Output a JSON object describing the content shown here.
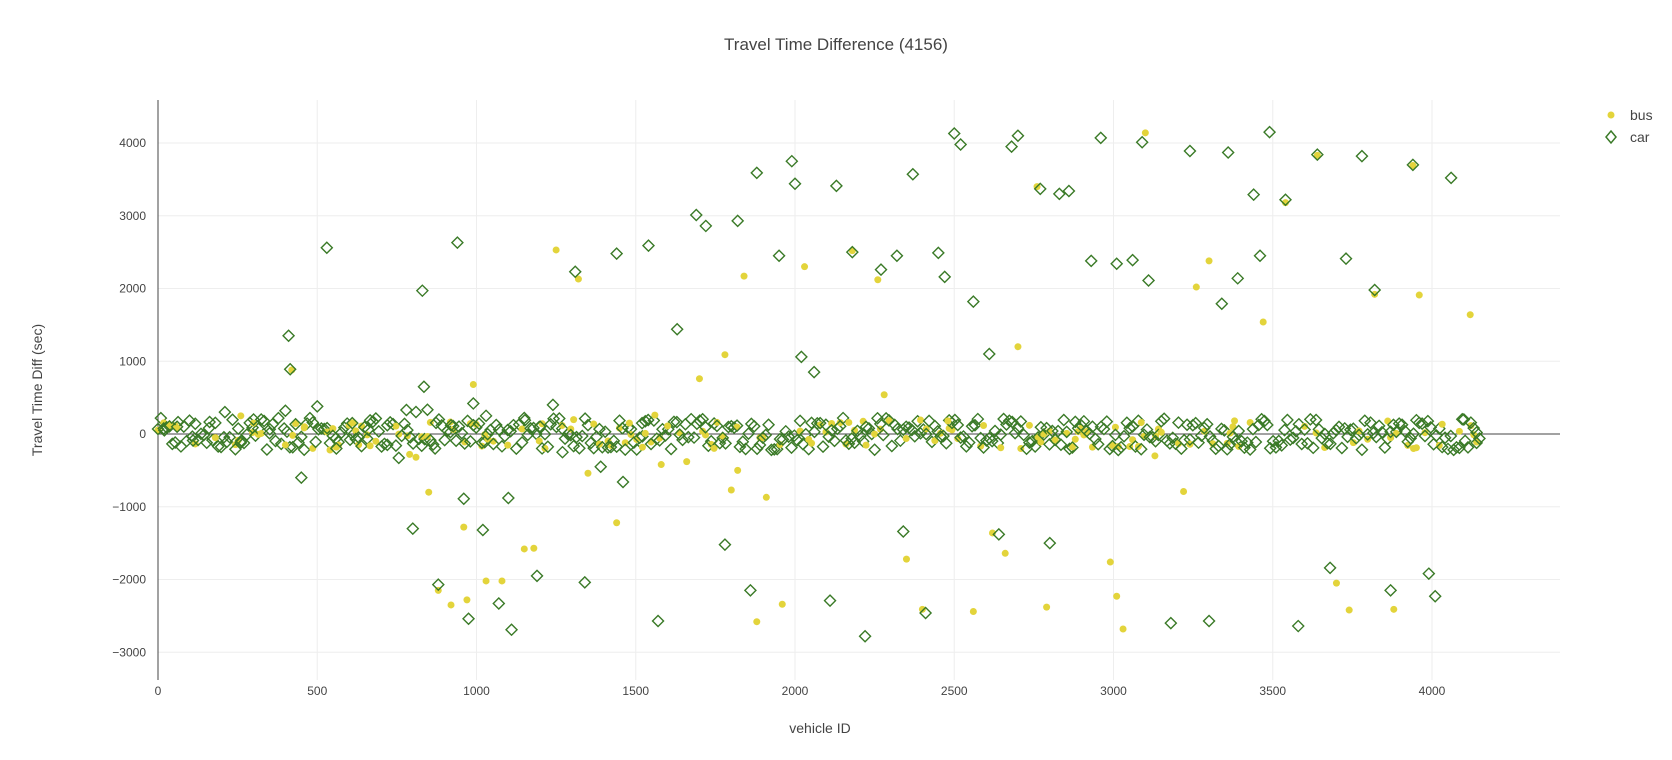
{
  "chart_data": {
    "type": "scatter",
    "title": "Travel Time Difference (4156)",
    "xlabel": "vehicle ID",
    "ylabel": "Travel Time Diff (sec)",
    "xlim": [
      -250,
      4400
    ],
    "ylim": [
      -3300,
      4600
    ],
    "xticks": [
      0,
      500,
      1000,
      1500,
      2000,
      2500,
      3000,
      3500,
      4000
    ],
    "xtick_labels": [
      "0",
      "500",
      "1000",
      "1500",
      "2000",
      "2500",
      "3000",
      "3500",
      "4000"
    ],
    "yticks": [
      -3000,
      -2000,
      -1000,
      0,
      1000,
      2000,
      3000,
      4000
    ],
    "ytick_labels": [
      "−3000",
      "−2000",
      "−1000",
      "0",
      "1000",
      "2000",
      "3000",
      "4000"
    ],
    "grid": true,
    "legend_position": "top-right",
    "series": [
      {
        "name": "bus",
        "marker": "circle",
        "color": "#e3d43b",
        "x": [
          60,
          180,
          260,
          300,
          400,
          420,
          460,
          540,
          560,
          600,
          790,
          810,
          850,
          880,
          920,
          960,
          970,
          990,
          1030,
          1080,
          1150,
          1180,
          1250,
          1320,
          1350,
          1440,
          1480,
          1560,
          1580,
          1600,
          1660,
          1700,
          1780,
          1800,
          1820,
          1840,
          1880,
          1910,
          1960,
          2030,
          2180,
          2260,
          2280,
          2350,
          2400,
          2480,
          2560,
          2620,
          2660,
          2700,
          2760,
          2790,
          2990,
          3010,
          3030,
          3100,
          3130,
          3220,
          3260,
          3300,
          3380,
          3470,
          3540,
          3640,
          3700,
          3740,
          3820,
          3880,
          3940,
          3960,
          4120
        ],
        "y": [
          80,
          -50,
          250,
          150,
          -150,
          880,
          100,
          -220,
          -180,
          120,
          -280,
          -320,
          -800,
          -2150,
          -2350,
          -1280,
          -2280,
          680,
          -2020,
          -2020,
          -1580,
          -1570,
          2530,
          2130,
          -540,
          -1220,
          150,
          260,
          -420,
          110,
          -380,
          760,
          1090,
          -770,
          -500,
          2170,
          -2580,
          -870,
          -2340,
          2300,
          2520,
          2120,
          540,
          -1720,
          -2410,
          180,
          -2440,
          -1360,
          -1640,
          1200,
          3400,
          -2380,
          -1760,
          -2230,
          -2680,
          4140,
          -300,
          -790,
          2020,
          2380,
          180,
          1540,
          3180,
          3830,
          -2050,
          -2420,
          1920,
          -2410,
          3690,
          1910,
          1640
        ]
      },
      {
        "name": "car",
        "marker": "diamond-open",
        "color": "#3a7a27",
        "x": [
          20,
          60,
          110,
          160,
          210,
          260,
          300,
          350,
          400,
          410,
          415,
          450,
          500,
          530,
          560,
          610,
          660,
          720,
          780,
          800,
          830,
          835,
          870,
          880,
          920,
          940,
          960,
          975,
          990,
          1020,
          1030,
          1070,
          1100,
          1110,
          1150,
          1190,
          1200,
          1240,
          1270,
          1310,
          1340,
          1390,
          1440,
          1460,
          1520,
          1540,
          1570,
          1630,
          1690,
          1720,
          1780,
          1820,
          1860,
          1880,
          1950,
          1990,
          2000,
          2020,
          2060,
          2110,
          2130,
          2180,
          2220,
          2270,
          2320,
          2340,
          2370,
          2410,
          2450,
          2470,
          2500,
          2520,
          2560,
          2610,
          2640,
          2680,
          2700,
          2770,
          2800,
          2830,
          2860,
          2930,
          2960,
          3010,
          3060,
          3090,
          3110,
          3180,
          3240,
          3300,
          3340,
          3360,
          3390,
          3440,
          3460,
          3490,
          3540,
          3580,
          3640,
          3680,
          3730,
          3780,
          3820,
          3870,
          3940,
          3990,
          4010,
          4060,
          4100,
          4140
        ],
        "y": [
          50,
          100,
          -90,
          80,
          300,
          -120,
          200,
          10,
          320,
          1350,
          890,
          -600,
          380,
          2560,
          -200,
          150,
          60,
          120,
          330,
          -1300,
          1970,
          650,
          -200,
          -2070,
          120,
          2630,
          -890,
          -2540,
          420,
          -1320,
          250,
          -2330,
          -880,
          -2690,
          220,
          -1950,
          100,
          400,
          -250,
          2230,
          -2040,
          -450,
          2480,
          -660,
          150,
          2590,
          -2570,
          1440,
          3010,
          2860,
          -1520,
          2930,
          -2150,
          3590,
          2450,
          3750,
          3440,
          1060,
          850,
          -2290,
          3410,
          2500,
          -2780,
          2260,
          2450,
          -1340,
          3570,
          -2460,
          2490,
          2160,
          4130,
          3980,
          1820,
          1100,
          -1380,
          3950,
          4100,
          3370,
          -1500,
          3300,
          3340,
          2380,
          4070,
          2340,
          2390,
          4010,
          2110,
          -2600,
          3890,
          -2570,
          1790,
          3870,
          2140,
          3290,
          2450,
          4150,
          3220,
          -2640,
          3840,
          -1840,
          2410,
          3820,
          1980,
          -2150,
          3700,
          -1920,
          -2230,
          3520,
          200,
          20
        ]
      }
    ]
  }
}
